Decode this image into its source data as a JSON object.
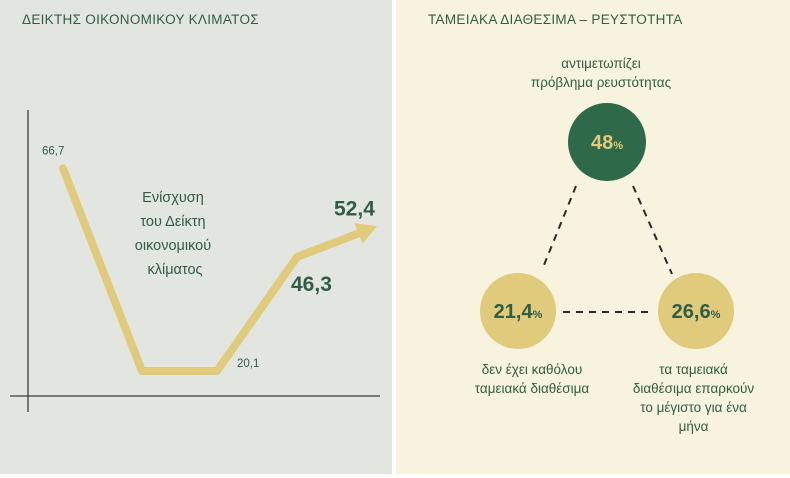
{
  "colors": {
    "dark_green": "#2e6a4a",
    "gold": "#e0cb7c",
    "text_green": "#2f5e45",
    "left_bg": "#e3e5e1",
    "right_bg": "#f7f3df"
  },
  "chart_data": [
    {
      "type": "line",
      "title": "ΔΕΙΚΤΗΣ ΟΙΚΟΝΟΜΙΚΟΥ ΚΛΙΜΑΤΟΣ",
      "annotation": [
        "Ενίσχυση",
        "του Δείκτη",
        "οικονομικού",
        "κλίματος"
      ],
      "series": [
        {
          "points": [
            {
              "label": "66,7",
              "value": 66.7
            },
            {
              "label": "",
              "value": 20.1
            },
            {
              "label": "20,1",
              "value": 20.1
            },
            {
              "label": "46,3",
              "value": 46.3
            },
            {
              "label": "52,4",
              "value": 52.4
            }
          ]
        }
      ],
      "arrow_at_end": true
    },
    {
      "type": "pie",
      "title": "ΤΑΜΕΙΑΚΑ ΔΙΑΘΕΣΙΜΑ – ΡΕΥΣΤΟΤΗΤΑ",
      "segments": [
        {
          "value": 48,
          "value_text": "48",
          "unit": "%",
          "label_lines": [
            "αντιμετωπίζει",
            "πρόβλημα ρευστότητας"
          ],
          "color": "#2e6a4a",
          "text_color": "#e0cb7c"
        },
        {
          "value": 21.4,
          "value_text": "21,4",
          "unit": "%",
          "label_lines": [
            "δεν έχει καθόλου",
            "ταμειακά διαθέσιμα"
          ],
          "color": "#e0cb7c",
          "text_color": "#2f5e45"
        },
        {
          "value": 26.6,
          "value_text": "26,6",
          "unit": "%",
          "label_lines": [
            "τα ταμειακά",
            "διαθέσιμα επαρκούν",
            "το μέγιστο για ένα",
            "μήνα"
          ],
          "color": "#e0cb7c",
          "text_color": "#2f5e45"
        }
      ]
    }
  ]
}
